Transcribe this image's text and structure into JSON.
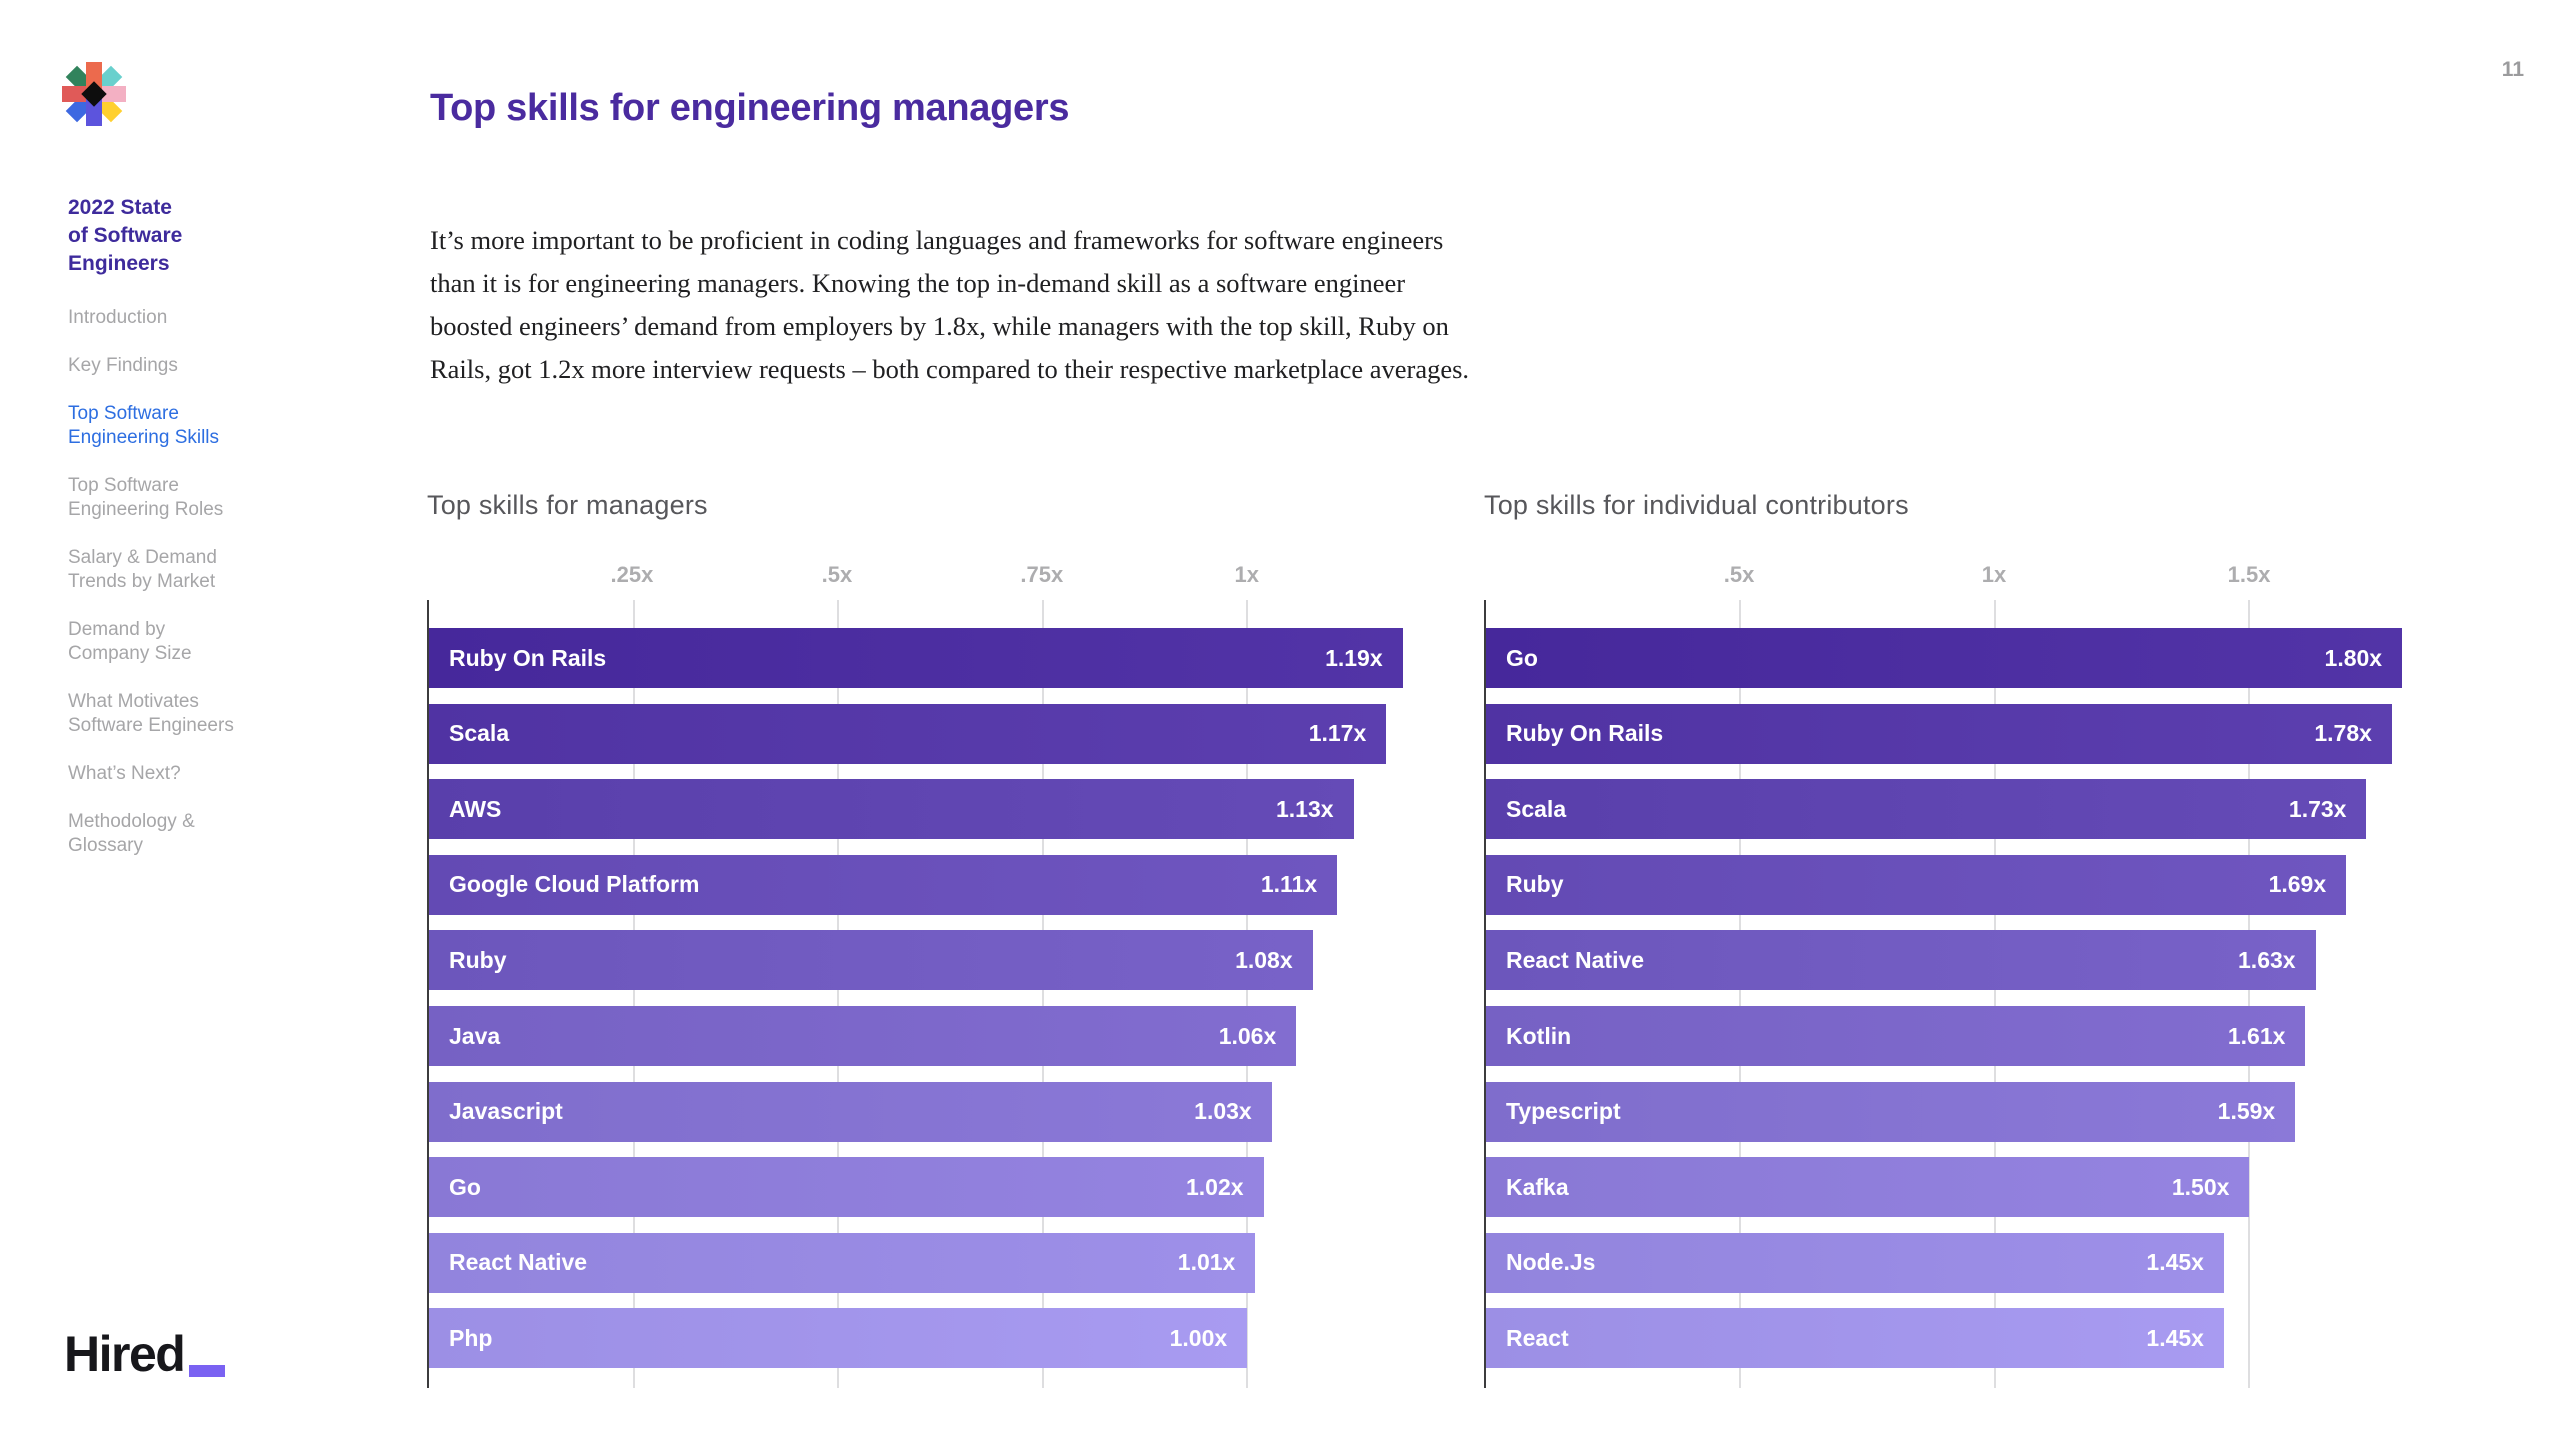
{
  "page": {
    "number": "11",
    "title": "Top skills for engineering managers",
    "intro": "It’s more important to be proficient in coding languages and frameworks for software engineers than it is for engineering managers. Knowing the top in-demand skill as a software engineer boosted engineers’ demand from employers by 1.8x, while managers with the top skill, Ruby on Rails, got 1.2x more interview requests – both compared to their respective marketplace averages."
  },
  "sidebar": {
    "report_title": "2022 State\nof Software\nEngineers",
    "items": [
      {
        "label": "Introduction",
        "active": false
      },
      {
        "label": "Key Findings",
        "active": false
      },
      {
        "label": "Top Software\nEngineering Skills",
        "active": true
      },
      {
        "label": "Top Software\nEngineering Roles",
        "active": false
      },
      {
        "label": "Salary & Demand\nTrends by Market",
        "active": false
      },
      {
        "label": "Demand by\nCompany Size",
        "active": false
      },
      {
        "label": "What Motivates\nSoftware Engineers",
        "active": false
      },
      {
        "label": "What’s Next?",
        "active": false
      },
      {
        "label": "Methodology &\nGlossary",
        "active": false
      }
    ],
    "footer_logo": "Hired"
  },
  "colors": {
    "accent_purple": "#4A2B9F",
    "report_title_purple": "#3E2B9C",
    "active_link_blue": "#2D6EE1",
    "hired_underscore": "#7A62F2",
    "logo_mark": {
      "top": "#EC6A4D",
      "top_right": "#69D0CD",
      "right": "#F3B0C3",
      "bottom_right": "#FFD02F",
      "bottom": "#5C54DD",
      "bottom_left": "#3D68E1",
      "left": "#E05A58",
      "top_left": "#31835C",
      "center": "#0D0D0D"
    }
  },
  "chart_data": [
    {
      "type": "bar",
      "orientation": "horizontal",
      "title": "Top skills for managers",
      "categories": [
        "Ruby On Rails",
        "Scala",
        "AWS",
        "Google Cloud Platform",
        "Ruby",
        "Java",
        "Javascript",
        "Go",
        "React Native",
        "Php"
      ],
      "values": [
        1.19,
        1.17,
        1.13,
        1.11,
        1.08,
        1.06,
        1.03,
        1.02,
        1.01,
        1.0
      ],
      "unit_suffix": "x",
      "ticks": [
        {
          "label": ".25x",
          "value": 0.25
        },
        {
          "label": ".5x",
          "value": 0.5
        },
        {
          "label": ".75x",
          "value": 0.75
        },
        {
          "label": "1x",
          "value": 1.0
        }
      ],
      "xlim": [
        0,
        1.232
      ],
      "grid": true,
      "legend": "none",
      "bar_color_start": "#46289B",
      "bar_color_end": "#9C8FE5"
    },
    {
      "type": "bar",
      "orientation": "horizontal",
      "title": "Top skills for individual contributors",
      "categories": [
        "Go",
        "Ruby On Rails",
        "Scala",
        "Ruby",
        "React Native",
        "Kotlin",
        "Typescript",
        "Kafka",
        "Node.Js",
        "React"
      ],
      "values": [
        1.8,
        1.78,
        1.73,
        1.69,
        1.63,
        1.61,
        1.59,
        1.5,
        1.45,
        1.45
      ],
      "unit_suffix": "x",
      "ticks": [
        {
          "label": ".5x",
          "value": 0.5
        },
        {
          "label": "1x",
          "value": 1.0
        },
        {
          "label": "1.5x",
          "value": 1.5
        }
      ],
      "xlim": [
        0,
        1.843
      ],
      "grid": true,
      "legend": "none",
      "bar_color_start": "#46289B",
      "bar_color_end": "#9C8FE5"
    }
  ]
}
